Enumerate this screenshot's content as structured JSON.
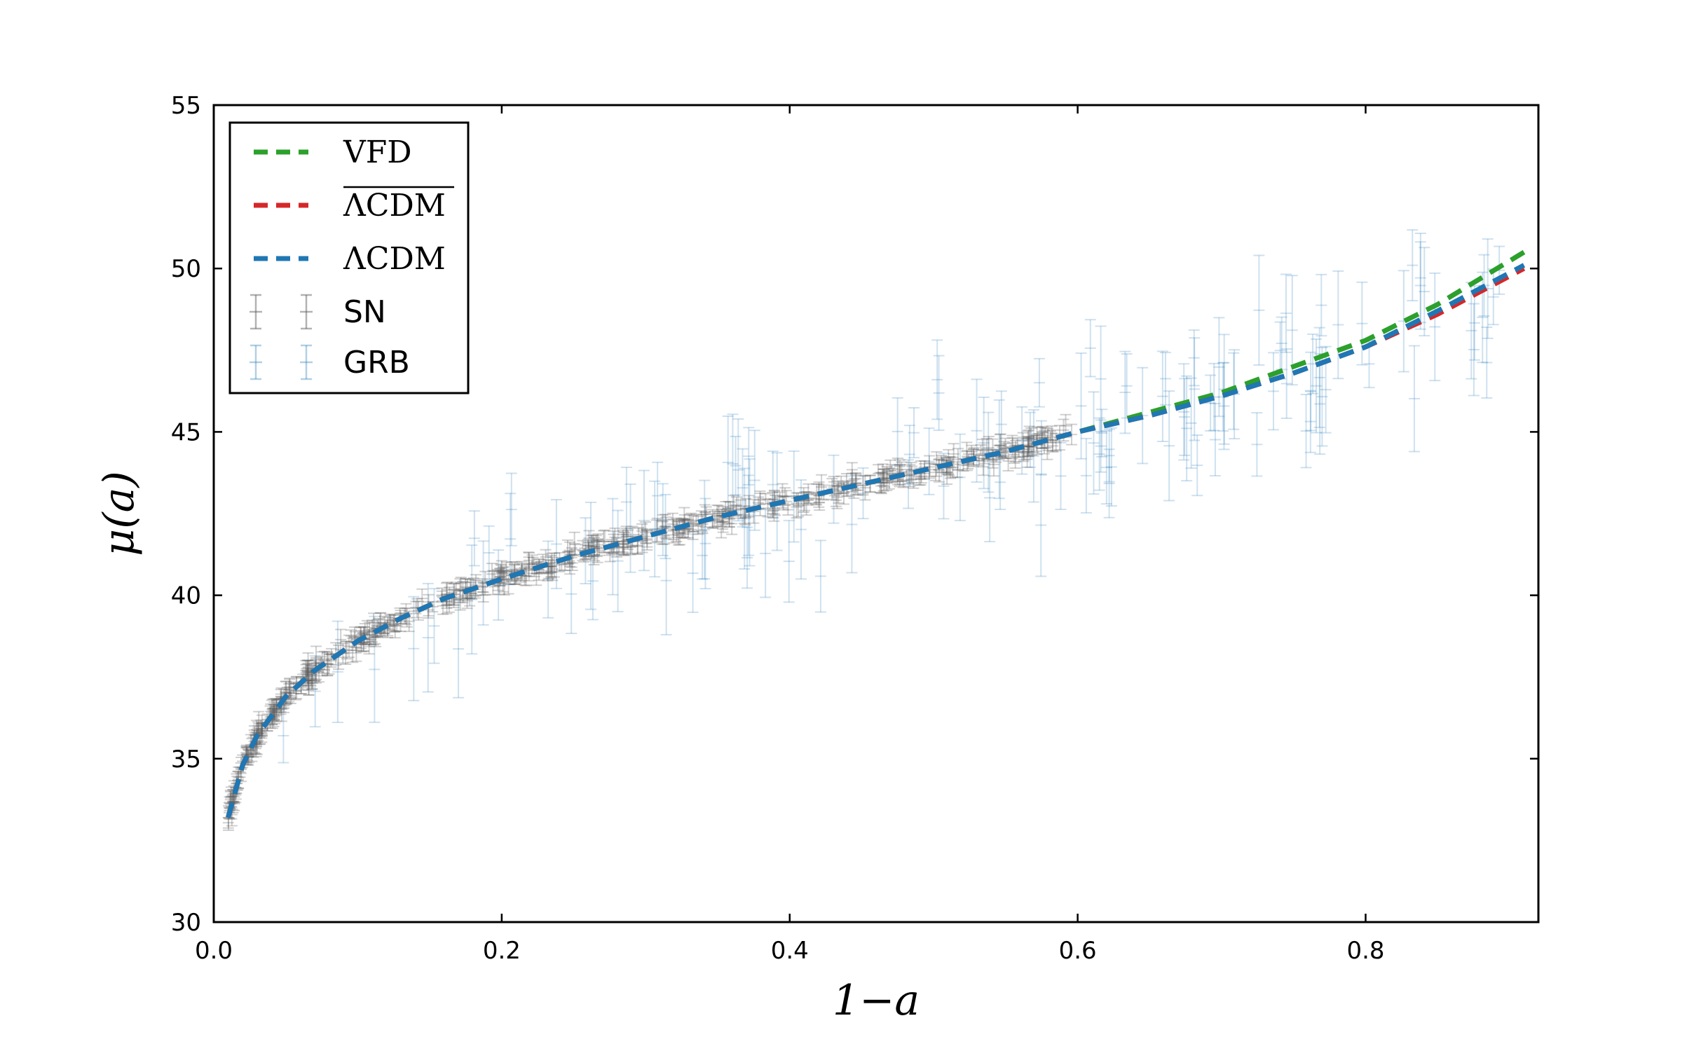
{
  "chart_data": {
    "type": "scatter",
    "title": "",
    "xlabel": "1−a",
    "ylabel": "μ(a)",
    "xlim": [
      0.0,
      0.92
    ],
    "ylim": [
      30,
      55
    ],
    "xticks": [
      0.0,
      0.2,
      0.4,
      0.6,
      0.8
    ],
    "xtick_labels": [
      "0.0",
      "0.2",
      "0.4",
      "0.6",
      "0.8"
    ],
    "yticks": [
      30,
      35,
      40,
      45,
      50,
      55
    ],
    "ytick_labels": [
      "30",
      "35",
      "40",
      "45",
      "50",
      "55"
    ],
    "legend_position": "top-left",
    "grid": false,
    "colors": {
      "vfd": "#2ca02c",
      "lcdm_bar": "#d62728",
      "lcdm": "#1f77b4",
      "sn": "#555555",
      "grb": "#1f77b4"
    },
    "series": [
      {
        "name": "VFD",
        "kind": "line",
        "style": "dashed",
        "x": [
          0.01,
          0.02,
          0.03,
          0.05,
          0.07,
          0.1,
          0.13,
          0.16,
          0.2,
          0.25,
          0.3,
          0.35,
          0.4,
          0.45,
          0.5,
          0.55,
          0.6,
          0.65,
          0.7,
          0.75,
          0.8,
          0.85,
          0.88,
          0.91
        ],
        "y": [
          33.2,
          34.8,
          35.7,
          36.9,
          37.7,
          38.6,
          39.3,
          39.9,
          40.5,
          41.2,
          41.8,
          42.4,
          42.9,
          43.4,
          43.9,
          44.4,
          45.0,
          45.6,
          46.2,
          47.0,
          47.8,
          48.9,
          49.7,
          50.5
        ]
      },
      {
        "name": "ΛCDM (bar)",
        "label": "ΛCDM",
        "overline": true,
        "kind": "line",
        "style": "dashed",
        "x": [
          0.01,
          0.02,
          0.03,
          0.05,
          0.07,
          0.1,
          0.13,
          0.16,
          0.2,
          0.25,
          0.3,
          0.35,
          0.4,
          0.45,
          0.5,
          0.55,
          0.6,
          0.65,
          0.7,
          0.75,
          0.8,
          0.85,
          0.88,
          0.91
        ],
        "y": [
          33.2,
          34.8,
          35.7,
          36.9,
          37.7,
          38.6,
          39.3,
          39.9,
          40.5,
          41.2,
          41.8,
          42.4,
          42.9,
          43.4,
          43.9,
          44.4,
          45.0,
          45.5,
          46.1,
          46.8,
          47.6,
          48.6,
          49.3,
          50.0
        ]
      },
      {
        "name": "ΛCDM",
        "label": "ΛCDM",
        "overline": false,
        "kind": "line",
        "style": "dashed",
        "x": [
          0.01,
          0.02,
          0.03,
          0.05,
          0.07,
          0.1,
          0.13,
          0.16,
          0.2,
          0.25,
          0.3,
          0.35,
          0.4,
          0.45,
          0.5,
          0.55,
          0.6,
          0.65,
          0.7,
          0.75,
          0.8,
          0.85,
          0.88,
          0.91
        ],
        "y": [
          33.2,
          34.8,
          35.7,
          36.9,
          37.7,
          38.6,
          39.3,
          39.9,
          40.5,
          41.2,
          41.8,
          42.4,
          42.9,
          43.4,
          43.9,
          44.4,
          45.0,
          45.5,
          46.1,
          46.8,
          47.6,
          48.7,
          49.4,
          50.1
        ]
      },
      {
        "name": "SN",
        "kind": "errorbar",
        "x_range": [
          0.01,
          0.6
        ],
        "approx_count": 580,
        "typical_error": 0.25,
        "follows": "ΛCDM"
      },
      {
        "name": "GRB",
        "kind": "errorbar",
        "x_range": [
          0.03,
          0.9
        ],
        "approx_count": 150,
        "typical_error": 1.2,
        "scatter": 1.5,
        "follows": "ΛCDM"
      }
    ]
  }
}
